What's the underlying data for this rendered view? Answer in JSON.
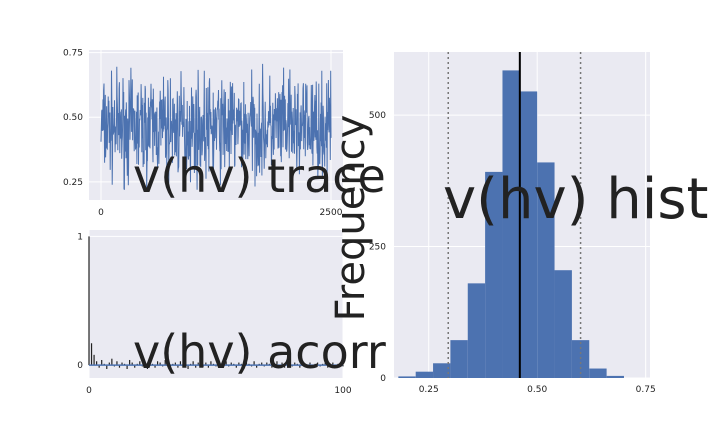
{
  "chart_data": [
    {
      "type": "line",
      "title": "v(hv) trace",
      "xlim": [
        0,
        2500
      ],
      "ylim": [
        0.18,
        0.76
      ],
      "xticks": [
        "0",
        "2500"
      ],
      "yticks": [
        "0.25",
        "0.50",
        "0.75"
      ],
      "series": [
        {
          "values_summary": {
            "mean": 0.46,
            "min": 0.22,
            "max": 0.72
          }
        }
      ],
      "grid": true
    },
    {
      "type": "bar",
      "title": "v(hv) acorr",
      "xlim": [
        0,
        100
      ],
      "ylim": [
        -0.1,
        1.05
      ],
      "xticks": [
        "0",
        "100"
      ],
      "yticks": [
        "0",
        "1"
      ],
      "lags": [
        0,
        1,
        2,
        3,
        4,
        5,
        6,
        7,
        8,
        9,
        10,
        11,
        12,
        13,
        14,
        15,
        16,
        17,
        18,
        19,
        20,
        21,
        22,
        23,
        24,
        25,
        26,
        27,
        28,
        29,
        30,
        31,
        32,
        33,
        34,
        35,
        36,
        37,
        38,
        39,
        40,
        41,
        42,
        43,
        44,
        45,
        46,
        47,
        48,
        49,
        50,
        51,
        52,
        53,
        54,
        55,
        56,
        57,
        58,
        59,
        60,
        61,
        62,
        63,
        64,
        65,
        66,
        67,
        68,
        69,
        70,
        71,
        72,
        73,
        74,
        75,
        76,
        77,
        78,
        79,
        80,
        81,
        82,
        83,
        84,
        85,
        86,
        87,
        88,
        89,
        90,
        91,
        92,
        93,
        94,
        95,
        96,
        97,
        98,
        99,
        100
      ],
      "values": [
        1.0,
        0.17,
        0.08,
        0.03,
        -0.02,
        0.04,
        0.01,
        -0.03,
        0.02,
        0.05,
        -0.01,
        0.03,
        -0.02,
        0.02,
        0.01,
        -0.03,
        0.04,
        0.02,
        -0.02,
        0.01,
        0.03,
        -0.01,
        0.02,
        -0.03,
        0.05,
        0.01,
        -0.02,
        0.03,
        0.02,
        -0.01,
        0.04,
        0.02,
        -0.03,
        0.01,
        0.02,
        -0.02,
        0.03,
        -0.01,
        0.02,
        -0.03,
        0.01,
        0.03,
        -0.02,
        0.02,
        0.01,
        -0.01,
        0.02,
        -0.02,
        0.03,
        0.01,
        -0.01,
        0.02,
        -0.02,
        0.01,
        0.03,
        -0.01,
        0.02,
        0.01,
        -0.02,
        0.02,
        0.01,
        -0.03,
        0.02,
        0.01,
        -0.01,
        0.03,
        -0.02,
        0.01,
        0.02,
        -0.01,
        0.02,
        0.01,
        -0.02,
        0.01,
        0.03,
        -0.01,
        0.02,
        -0.02,
        0.01,
        0.02,
        -0.01,
        0.02,
        0.01,
        -0.02,
        0.03,
        0.01,
        -0.01,
        0.02,
        -0.02,
        0.01,
        0.02,
        -0.01,
        0.01,
        0.02,
        -0.02,
        0.01,
        0.02,
        -0.01,
        0.01,
        0.02,
        -0.01
      ],
      "grid": true
    },
    {
      "type": "bar",
      "title": "v(hv) hist",
      "ylabel": "Frequency",
      "xlim": [
        0.17,
        0.76
      ],
      "ylim": [
        0,
        620
      ],
      "xticks": [
        "0.25",
        "0.50",
        "0.75"
      ],
      "yticks": [
        "0",
        "250",
        "500"
      ],
      "bin_edges": [
        0.18,
        0.22,
        0.26,
        0.3,
        0.34,
        0.38,
        0.42,
        0.46,
        0.5,
        0.54,
        0.58,
        0.62,
        0.66,
        0.7,
        0.74
      ],
      "values": [
        3,
        12,
        28,
        72,
        180,
        392,
        585,
        545,
        410,
        205,
        72,
        18,
        4,
        0
      ],
      "vlines": {
        "mean": 0.46,
        "hpd": [
          0.295,
          0.6
        ]
      },
      "grid": true
    }
  ]
}
